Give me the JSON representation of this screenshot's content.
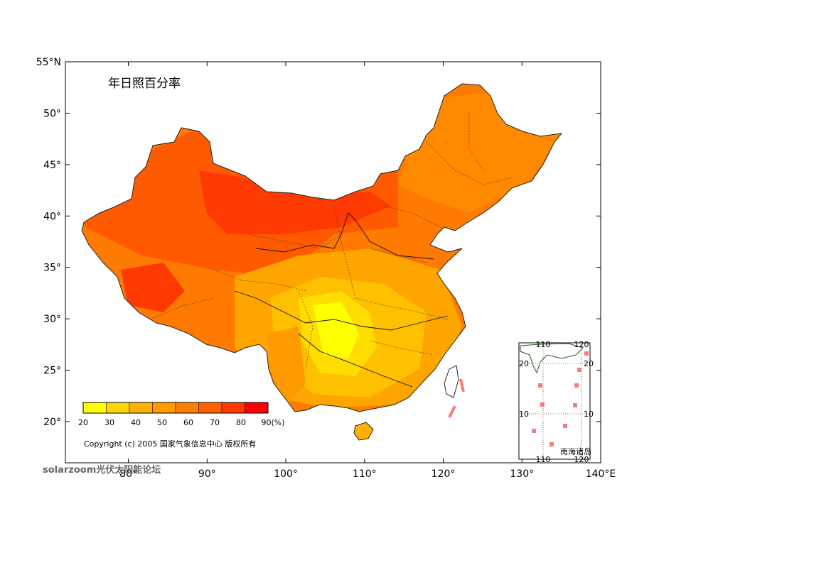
{
  "map": {
    "title": "年日照百分率",
    "lat_ticks": [
      "55°N",
      "50°",
      "45°",
      "40°",
      "35°",
      "30°",
      "25°",
      "20°"
    ],
    "lon_ticks": [
      "80°",
      "90°",
      "100°",
      "110°",
      "120°",
      "130°",
      "140°E"
    ],
    "lat_values": [
      55,
      50,
      45,
      40,
      35,
      30,
      25,
      20
    ],
    "lon_values": [
      80,
      90,
      100,
      110,
      120,
      130,
      140
    ],
    "lon_range": [
      72,
      140
    ],
    "lat_range": [
      16,
      55
    ]
  },
  "legend": {
    "values": [
      "20",
      "30",
      "40",
      "50",
      "60",
      "70",
      "80",
      "90(%)"
    ],
    "colors": [
      "#ffff00",
      "#ffd700",
      "#ffb000",
      "#ff9a00",
      "#ff8000",
      "#ff6000",
      "#ff3a00",
      "#ff0000"
    ]
  },
  "copyright": "Copyright (c) 2005 国家气象信息中心 版权所有",
  "inset": {
    "caption": "南海诸岛",
    "top_labels": [
      "110",
      "120"
    ],
    "bottom_labels": [
      "110",
      "120"
    ],
    "left_labels": [
      "20",
      "10"
    ],
    "right_labels": [
      "20",
      "10"
    ]
  },
  "watermark": {
    "brand": "solarzoom",
    "text": "光伏太阳能论坛"
  }
}
